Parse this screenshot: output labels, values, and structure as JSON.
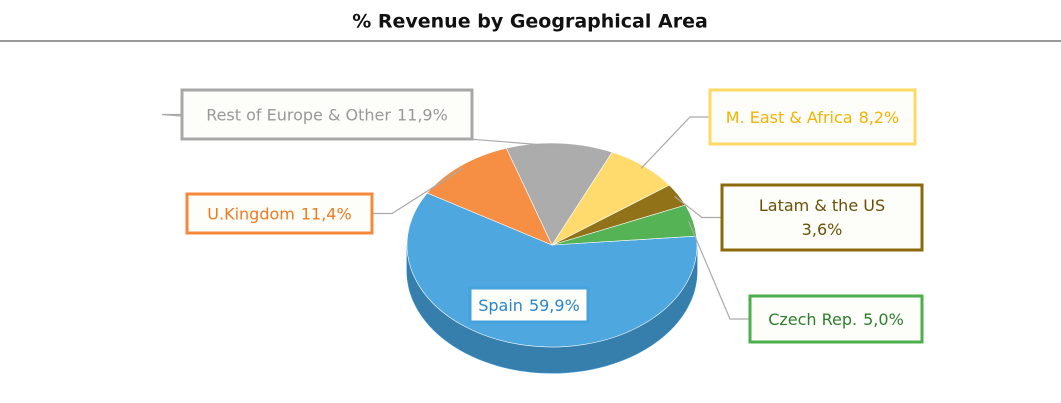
{
  "chart_data": {
    "type": "pie",
    "title": "% Revenue by Geographical Area",
    "categories": [
      "Spain",
      "U.Kingdom",
      "Rest of Europe & Other",
      "M. East & Africa",
      "Latam & the US",
      "Czech Rep."
    ],
    "values": [
      59.9,
      11.4,
      11.9,
      8.2,
      3.6,
      5.0
    ],
    "value_labels": [
      "59,9%",
      "11,4%",
      "11,9%",
      "8,2%",
      "3,6%",
      "5,0%"
    ],
    "colors": [
      "#46a2dd",
      "#f5883a",
      "#a8a8a8",
      "#ffd966",
      "#8c6a0c",
      "#4cae4c"
    ]
  }
}
